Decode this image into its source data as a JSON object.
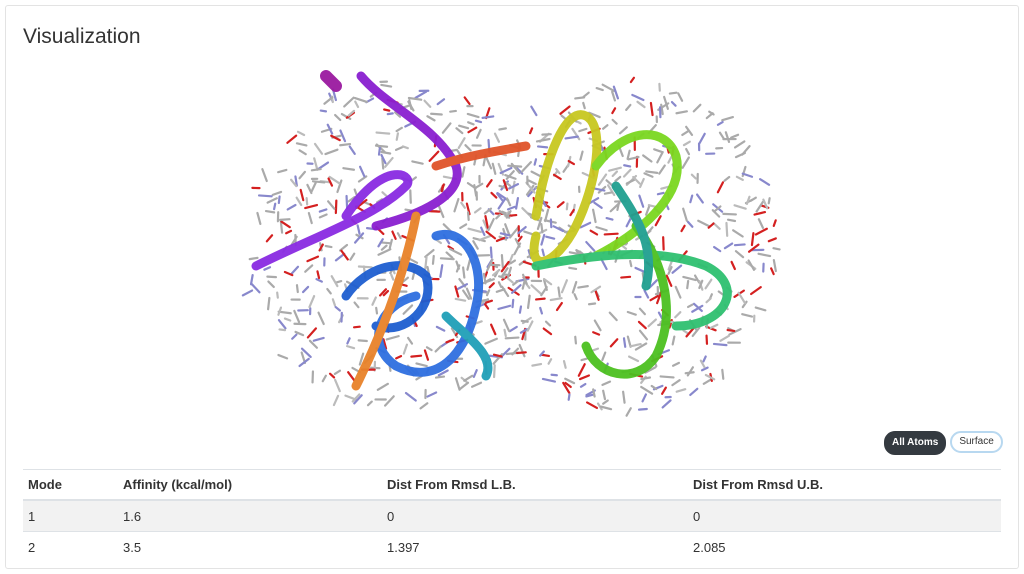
{
  "header": {
    "title": "Visualization"
  },
  "buttons": [
    "All Atoms",
    "Surface"
  ],
  "table": {
    "columns": [
      "Mode",
      "Affinity (kcal/mol)",
      "Dist From Rmsd L.B.",
      "Dist From Rmsd U.B."
    ],
    "rows": [
      [
        1,
        1.6,
        0,
        0
      ],
      [
        2,
        3.5,
        1.397,
        2.085
      ]
    ]
  }
}
